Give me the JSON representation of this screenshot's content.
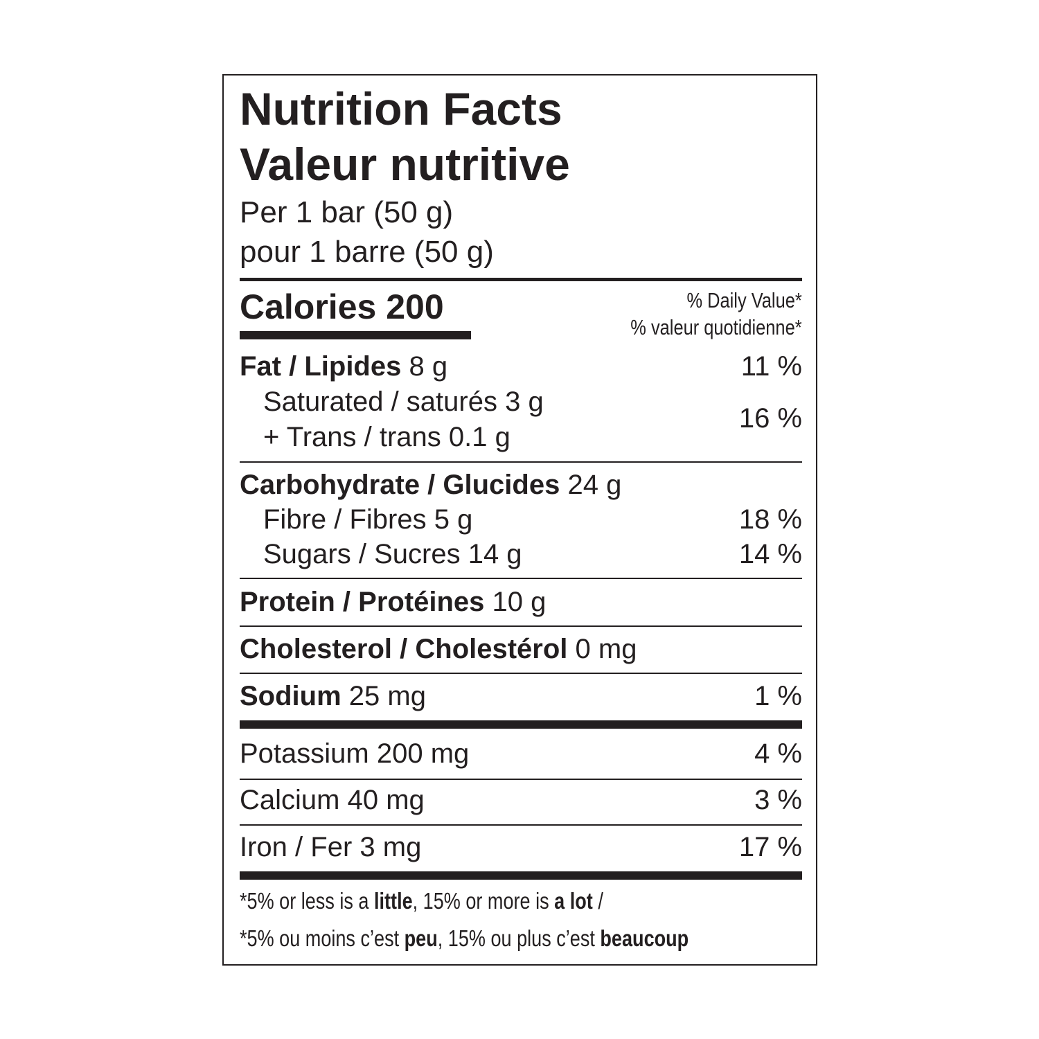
{
  "title_en": "Nutrition Facts",
  "title_fr": "Valeur nutritive",
  "serving_en": "Per 1 bar (50 g)",
  "serving_fr": "pour 1 barre (50 g)",
  "calories": {
    "label": "Calories",
    "value": "200"
  },
  "dv_header_en": "% Daily Value*",
  "dv_header_fr": "% valeur quotidienne*",
  "nutrients": {
    "fat": {
      "label": "Fat / Lipides",
      "amount": "8 g",
      "dv": "11 %"
    },
    "saturated": {
      "label": "Saturated / saturés",
      "amount": "3 g"
    },
    "trans": {
      "label": "+ Trans / trans",
      "amount": "0.1 g"
    },
    "sat_trans_dv": "16 %",
    "carbohydrate": {
      "label": "Carbohydrate / Glucides",
      "amount": "24 g"
    },
    "fibre": {
      "label": "Fibre / Fibres",
      "amount": "5 g",
      "dv": "18 %"
    },
    "sugars": {
      "label": "Sugars / Sucres",
      "amount": "14 g",
      "dv": "14 %"
    },
    "protein": {
      "label": "Protein / Protéines",
      "amount": "10 g"
    },
    "cholesterol": {
      "label": "Cholesterol / Cholestérol",
      "amount": "0 mg"
    },
    "sodium": {
      "label": "Sodium",
      "amount": "25 mg",
      "dv": "1 %"
    },
    "potassium": {
      "label": "Potassium",
      "amount": "200 mg",
      "dv": "4 %"
    },
    "calcium": {
      "label": "Calcium",
      "amount": "40 mg",
      "dv": "3 %"
    },
    "iron": {
      "label": "Iron / Fer",
      "amount": "3 mg",
      "dv": "17 %"
    }
  },
  "footnote": {
    "en": [
      "*5% or less is a ",
      "little",
      ", 15% or more is ",
      "a lot",
      " /"
    ],
    "fr": [
      "*5% ou moins c’est ",
      "peu",
      ", 15% ou plus c’est ",
      "beaucoup"
    ]
  }
}
